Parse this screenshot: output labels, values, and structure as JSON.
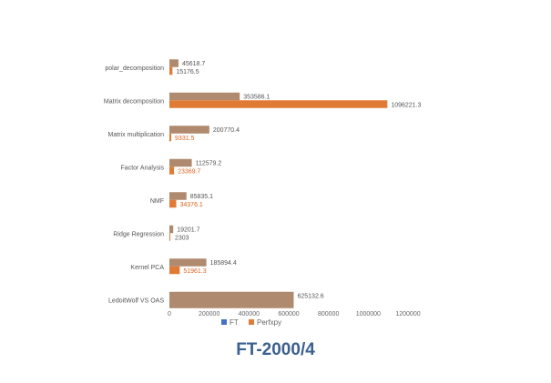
{
  "title": "FT-2000/4",
  "chart_data": {
    "type": "bar",
    "orientation": "horizontal",
    "categories": [
      "polar_decomposition",
      "Matrix decomposition",
      "Matrix multiplication",
      "Factor Analysis",
      "NMF",
      "Ridge Regression",
      "Kernel PCA",
      "LedoitWolf VS OAS"
    ],
    "series": [
      {
        "name": "FT",
        "values": [
          45618.7,
          353586.1,
          200770.4,
          112579.2,
          85835.1,
          19201.7,
          185894.4,
          625132.6
        ],
        "labels": [
          "45618.7",
          "353586.1",
          "200770.4",
          "112579.2",
          "85835.1",
          "19201.7",
          "185894.4",
          "625132.6"
        ]
      },
      {
        "name": "Perfxpy",
        "values": [
          15176.5,
          1096221.3,
          9331.5,
          23369.7,
          34376.1,
          2303,
          51961.3,
          null
        ],
        "labels": [
          "15176.5",
          "1096221.3",
          "9331.5",
          "23369.7",
          "34376.1",
          "2303",
          "51961.3",
          ""
        ]
      }
    ],
    "xticks": [
      "0",
      "200000",
      "400000",
      "600000",
      "800000",
      "1000000",
      "1200000"
    ],
    "xlim": [
      0,
      1200000
    ],
    "grid": false,
    "legend": "bottom",
    "colors": {
      "FT": "#b08a6e",
      "Perfxpy": "#e07b35",
      "title": "#3b5f8f",
      "legend_FT": "#4472c4"
    }
  }
}
